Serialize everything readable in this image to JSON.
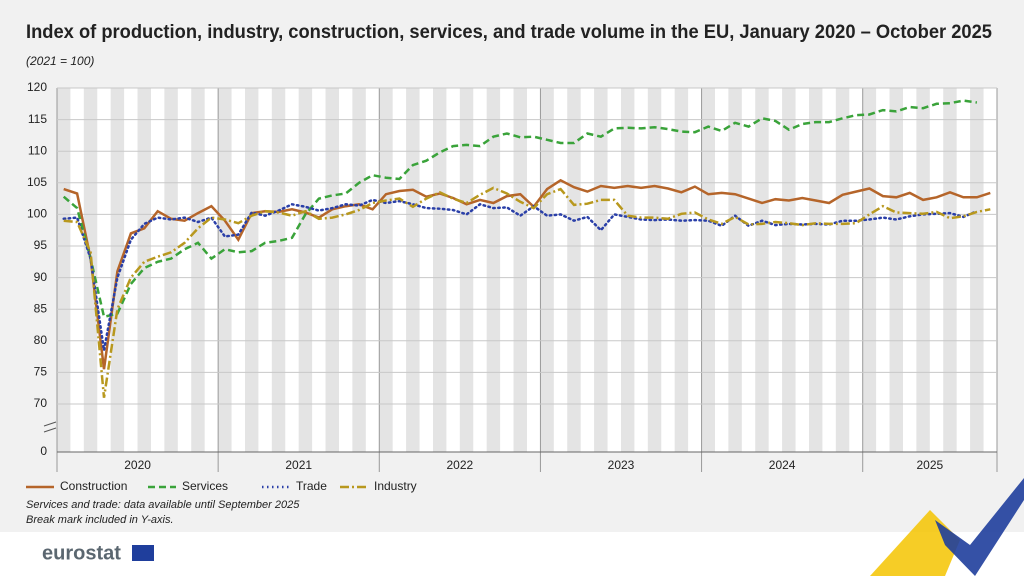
{
  "chart_data": {
    "type": "line",
    "title": "Index of production, industry, construction, services, and trade volume in the EU, January 2020 – October 2025",
    "subtitle": "(2021 = 100)",
    "categories": [
      "2020",
      null,
      null,
      null,
      null,
      null,
      null,
      null,
      null,
      null,
      null,
      null,
      "2021",
      null,
      null,
      null,
      null,
      null,
      null,
      null,
      null,
      null,
      null,
      null,
      "2022",
      null,
      null,
      null,
      null,
      null,
      null,
      null,
      null,
      null,
      null,
      null,
      "2023",
      null,
      null,
      null,
      null,
      null,
      null,
      null,
      null,
      null,
      null,
      null,
      "2024",
      null,
      null,
      null,
      null,
      null,
      null,
      null,
      null,
      null,
      null,
      null,
      "2025",
      null,
      null,
      null,
      null,
      null,
      null,
      null,
      null,
      null
    ],
    "series": [
      {
        "name": "Construction",
        "color": "#b5652a",
        "style": "solid",
        "values": [
          104,
          103.3,
          93,
          75.5,
          91,
          97,
          97.8,
          100.5,
          99.3,
          99,
          100.2,
          101.3,
          99,
          96,
          100.2,
          100.5,
          100.4,
          100.8,
          100.3,
          99.5,
          100.8,
          101.3,
          101.6,
          100.8,
          103.2,
          103.7,
          103.9,
          102.8,
          103.3,
          102.6,
          101.6,
          102.3,
          101.8,
          102.9,
          103.2,
          101.2,
          104,
          105.4,
          104.3,
          103.6,
          104.5,
          104.2,
          104.5,
          104.2,
          104.5,
          104.1,
          103.5,
          104.4,
          103.2,
          103.4,
          103.2,
          102.5,
          101.8,
          102.4,
          102.2,
          102.6,
          102.2,
          101.8,
          103.1,
          103.6,
          104.1,
          102.9,
          102.7,
          103.4,
          102.3,
          102.7,
          103.5,
          102.7,
          102.7,
          103.4
        ]
      },
      {
        "name": "Services",
        "color": "#3aa33a",
        "style": "dashed",
        "values": [
          102.8,
          101,
          93,
          83.8,
          84.3,
          89,
          91.5,
          92.5,
          93,
          94.5,
          95.5,
          93,
          94.5,
          94,
          94.2,
          95.5,
          95.8,
          96.3,
          100,
          102.5,
          103,
          103.3,
          105,
          106.2,
          105.8,
          105.6,
          107.8,
          108.5,
          109.8,
          110.8,
          111,
          110.8,
          112.3,
          112.8,
          112.2,
          112.3,
          111.8,
          111.3,
          111.3,
          112.8,
          112.3,
          113.6,
          113.7,
          113.6,
          113.8,
          113.5,
          113.1,
          113,
          113.9,
          113.2,
          114.5,
          113.9,
          115.2,
          114.8,
          113.4,
          114.3,
          114.6,
          114.6,
          115.2,
          115.7,
          115.8,
          116.5,
          116.3,
          117,
          116.8,
          117.5,
          117.6,
          118,
          117.7,
          null
        ]
      },
      {
        "name": "Trade",
        "color": "#2a3fa8",
        "style": "dotted",
        "values": [
          99.3,
          99.5,
          93,
          78.5,
          90,
          96,
          98.5,
          99.5,
          99.2,
          99.5,
          98.8,
          99.5,
          96.5,
          96.8,
          100.3,
          99.8,
          100.6,
          101.6,
          101.2,
          100.6,
          101,
          101.6,
          101.4,
          102.3,
          101.8,
          102.1,
          101.6,
          101,
          100.9,
          100.7,
          100,
          101.6,
          101,
          101.1,
          99.8,
          101.3,
          99.8,
          100,
          99,
          99.6,
          97.5,
          100,
          99.6,
          99.2,
          99.1,
          99.2,
          99,
          99.1,
          99,
          98.2,
          99.8,
          98.2,
          99,
          98.3,
          98.5,
          98.4,
          98.5,
          98.4,
          99,
          99,
          99.2,
          99.5,
          99.2,
          99.7,
          100,
          100.1,
          100.2,
          99.6,
          100.5,
          null
        ]
      },
      {
        "name": "Industry",
        "color": "#b8981e",
        "style": "dashdot",
        "values": [
          99,
          98.8,
          94,
          71,
          85,
          90,
          92.5,
          93.3,
          94,
          95.5,
          97.8,
          99.5,
          99.2,
          98.6,
          99.8,
          100.5,
          100.3,
          99.8,
          100.5,
          99.3,
          99.5,
          100,
          100.7,
          101.8,
          102.2,
          102.5,
          101.2,
          102.5,
          103.5,
          102.5,
          101.8,
          103.1,
          104.2,
          103.3,
          102,
          101,
          103.2,
          104,
          101.5,
          101.7,
          102.3,
          102.3,
          99.8,
          99.5,
          99.5,
          99.3,
          100.1,
          100.3,
          99.2,
          98.5,
          99.6,
          98.4,
          98.5,
          98.8,
          98.6,
          98.3,
          98.6,
          98.5,
          98.5,
          98.6,
          100,
          101.3,
          100.3,
          100.2,
          100.1,
          100.4,
          99.4,
          99.7,
          100.4,
          100.8
        ]
      }
    ],
    "ylim": [
      0,
      120
    ],
    "yticks": [
      0,
      70,
      75,
      80,
      85,
      90,
      95,
      100,
      105,
      110,
      115,
      120
    ],
    "axis_break": true,
    "grid": true,
    "legend": "bottom",
    "notes": [
      "Services and trade: data available until September 2025",
      "Break mark included in Y-axis."
    ],
    "logo": "eurostat"
  }
}
